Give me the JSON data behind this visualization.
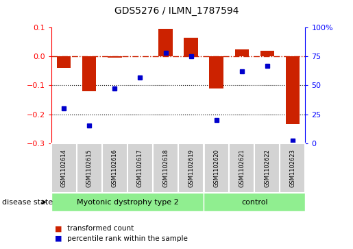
{
  "title": "GDS5276 / ILMN_1787594",
  "samples": [
    "GSM1102614",
    "GSM1102615",
    "GSM1102616",
    "GSM1102617",
    "GSM1102618",
    "GSM1102619",
    "GSM1102620",
    "GSM1102621",
    "GSM1102622",
    "GSM1102623"
  ],
  "transformed_count": [
    -0.04,
    -0.12,
    -0.005,
    0.0,
    0.095,
    0.065,
    -0.11,
    0.025,
    0.02,
    -0.235
  ],
  "percentile_rank": [
    30,
    15,
    47,
    57,
    78,
    75,
    20,
    62,
    67,
    2
  ],
  "disease_groups": [
    {
      "label": "Myotonic dystrophy type 2",
      "start": 0,
      "end": 5,
      "color": "#90EE90"
    },
    {
      "label": "control",
      "start": 6,
      "end": 9,
      "color": "#90EE90"
    }
  ],
  "bar_color": "#cc2200",
  "dot_color": "#0000cc",
  "ylim_left": [
    -0.3,
    0.1
  ],
  "ylim_right": [
    0,
    100
  ],
  "yticks_left": [
    -0.3,
    -0.2,
    -0.1,
    0.0,
    0.1
  ],
  "yticks_right": [
    0,
    25,
    50,
    75,
    100
  ],
  "hline_zero_color": "#cc2200",
  "hline_dots_color": "black",
  "background_color": "#ffffff",
  "label_transformed": "transformed count",
  "label_percentile": "percentile rank within the sample",
  "disease_state_label": "disease state",
  "n_disease": 6,
  "n_control": 4,
  "box_color": "#d3d3d3",
  "box_edge_color": "white"
}
